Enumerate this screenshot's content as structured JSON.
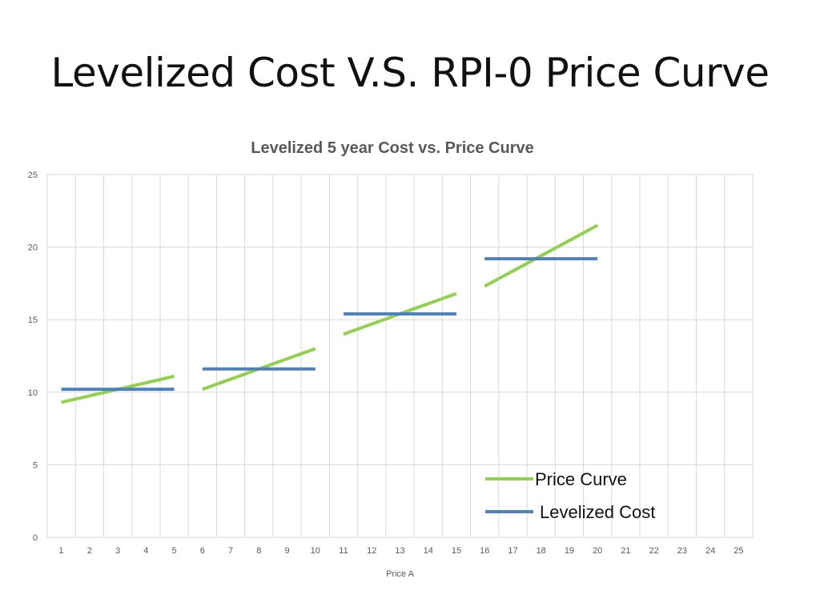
{
  "slide": {
    "title": "Levelized Cost V.S. RPI-0 Price Curve"
  },
  "chart_data": {
    "type": "line",
    "title": "Levelized 5 year Cost vs. Price Curve",
    "xlabel": "Price A",
    "ylabel": "",
    "x_ticks": [
      "1",
      "2",
      "3",
      "4",
      "5",
      "6",
      "7",
      "8",
      "9",
      "10",
      "11",
      "12",
      "13",
      "14",
      "15",
      "16",
      "17",
      "18",
      "19",
      "20",
      "21",
      "22",
      "23",
      "24",
      "25"
    ],
    "y_ticks": [
      0,
      5,
      10,
      15,
      20,
      25
    ],
    "xlim": [
      0.5,
      25.5
    ],
    "ylim": [
      0,
      25
    ],
    "grid": true,
    "legend_position": "bottom-right",
    "series": [
      {
        "name": "Price Curve",
        "color": "#92d050",
        "segments": [
          [
            [
              1,
              9.3
            ],
            [
              5,
              11.1
            ]
          ],
          [
            [
              6,
              10.2
            ],
            [
              10,
              13.0
            ]
          ],
          [
            [
              11,
              14.0
            ],
            [
              15,
              16.8
            ]
          ],
          [
            [
              16,
              17.3
            ],
            [
              20,
              21.5
            ]
          ]
        ]
      },
      {
        "name": "Levelized Cost",
        "color": "#4f81bd",
        "segments": [
          [
            [
              1,
              10.2
            ],
            [
              5,
              10.2
            ]
          ],
          [
            [
              6,
              11.6
            ],
            [
              10,
              11.6
            ]
          ],
          [
            [
              11,
              15.4
            ],
            [
              15,
              15.4
            ]
          ],
          [
            [
              16,
              19.2
            ],
            [
              20,
              19.2
            ]
          ]
        ]
      }
    ]
  }
}
